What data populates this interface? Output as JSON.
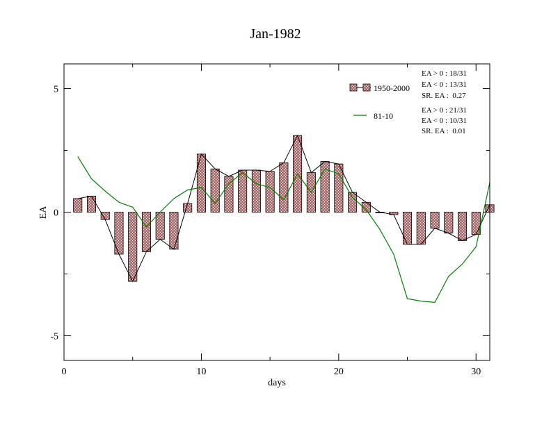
{
  "chart_data": {
    "type": "bar",
    "title": "Jan-1982",
    "xlabel": "days",
    "ylabel": "EA",
    "xlim": [
      0,
      31
    ],
    "ylim": [
      -6,
      6
    ],
    "x_ticks": [
      0,
      10,
      20,
      30
    ],
    "y_ticks": [
      -5,
      0,
      5
    ],
    "grid": false,
    "legend_position": "top-right",
    "x": [
      1,
      2,
      3,
      4,
      5,
      6,
      7,
      8,
      9,
      10,
      11,
      12,
      13,
      14,
      15,
      16,
      17,
      18,
      19,
      20,
      21,
      22,
      23,
      24,
      25,
      26,
      27,
      28,
      29,
      30,
      31
    ],
    "series": [
      {
        "name": "1950-2000",
        "kind": "bar+line",
        "color": "#e06a6a",
        "values": [
          0.55,
          0.65,
          -0.3,
          -1.7,
          -2.8,
          -1.6,
          -1.1,
          -1.5,
          0.35,
          2.35,
          1.75,
          1.45,
          1.7,
          1.7,
          1.65,
          2.0,
          3.1,
          1.6,
          2.05,
          1.95,
          0.8,
          0.4,
          0.0,
          -0.1,
          -1.3,
          -1.3,
          -0.65,
          -0.85,
          -1.15,
          -0.9,
          0.3
        ]
      },
      {
        "name": "81-10",
        "kind": "line",
        "color": "#008000",
        "values": [
          2.25,
          1.35,
          0.85,
          0.4,
          0.2,
          -0.6,
          0.0,
          0.55,
          0.9,
          1.0,
          0.35,
          1.15,
          1.6,
          1.15,
          1.0,
          0.5,
          1.55,
          0.8,
          1.75,
          1.55,
          0.6,
          0.1,
          -0.7,
          -1.7,
          -3.5,
          -3.6,
          -3.65,
          -2.6,
          -2.1,
          -1.4,
          1.2
        ]
      }
    ],
    "annotations": [
      [
        "EA > 0 : 18/31",
        "EA < 0 : 13/31",
        "SR. EA :  0.27"
      ],
      [
        "EA > 0 : 21/31",
        "EA < 0 : 10/31",
        "SR. EA :  0.01"
      ]
    ]
  }
}
